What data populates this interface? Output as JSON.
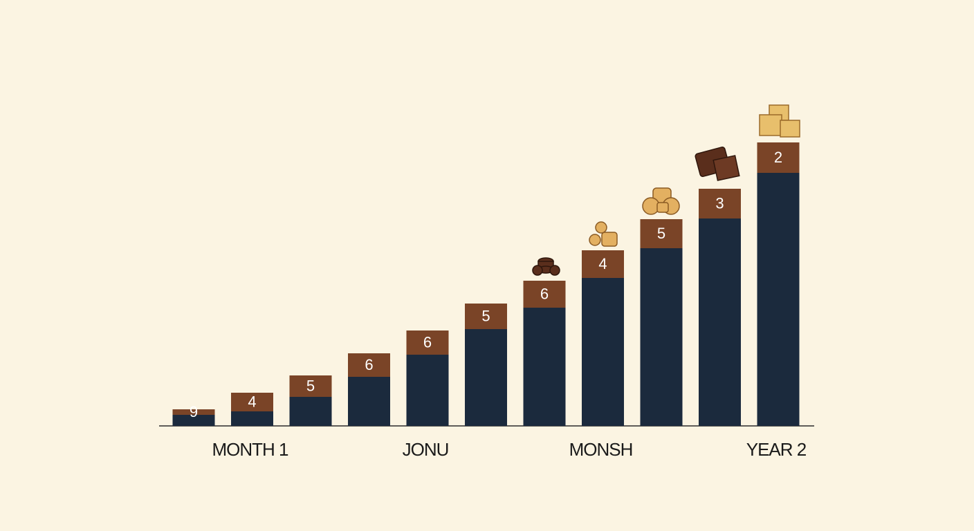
{
  "chart_data": {
    "type": "bar",
    "stacked": true,
    "categories": [
      null,
      "MONTH 1",
      null,
      null,
      "JONU",
      null,
      null,
      "MONSH",
      null,
      null,
      "YEAR 2"
    ],
    "series": [
      {
        "color": "#1b2a3d",
        "values": [
          16,
          21,
          42,
          71,
          103,
          140,
          171,
          214,
          257,
          300,
          366
        ]
      },
      {
        "color": "#7a4427",
        "values": [
          8,
          27,
          31,
          34,
          35,
          37,
          39,
          40,
          42,
          43,
          44
        ],
        "segment_labels": [
          "9",
          "4",
          "5",
          "6",
          "6",
          "5",
          "6",
          "4",
          "5",
          "3",
          "2"
        ]
      }
    ],
    "ylim": [
      0,
      410
    ]
  }
}
